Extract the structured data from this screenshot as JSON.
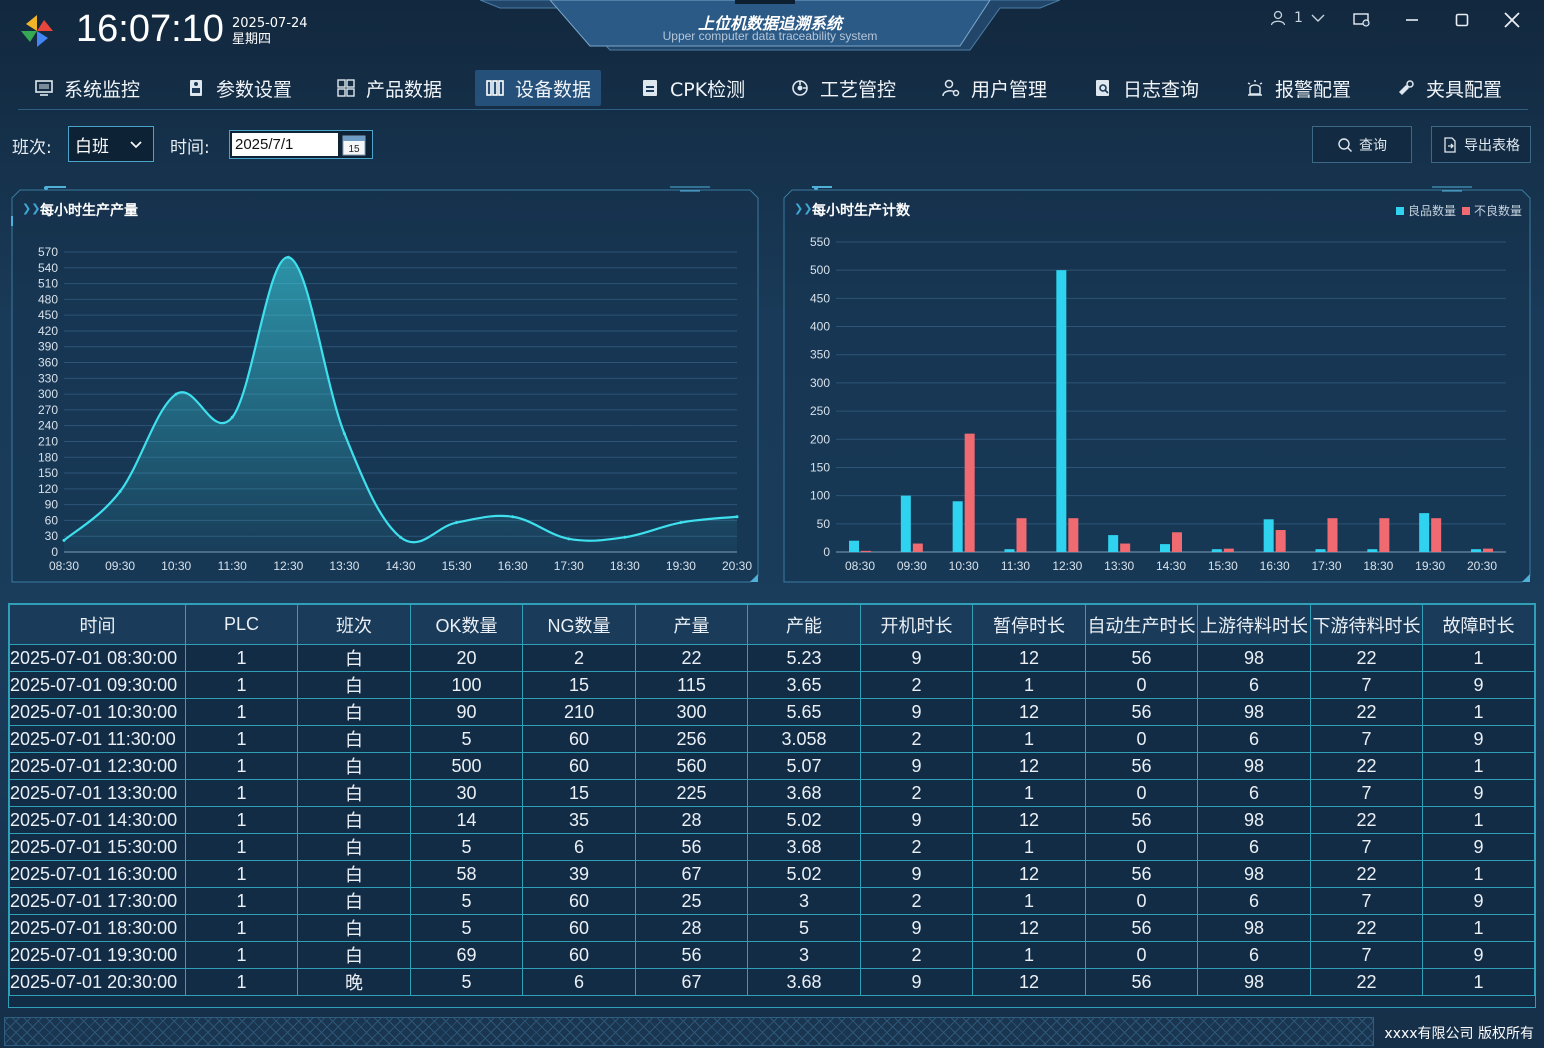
{
  "header": {
    "time": "16:07:10",
    "date": "2025-07-24",
    "weekday": "星期四",
    "title": "上位机数据追溯系统",
    "subtitle": "Upper computer data traceability system",
    "user_count": "1"
  },
  "nav": {
    "items": [
      {
        "label": "系统监控",
        "icon": "monitor-icon"
      },
      {
        "label": "参数设置",
        "icon": "plc-icon"
      },
      {
        "label": "产品数据",
        "icon": "grid-icon"
      },
      {
        "label": "设备数据",
        "icon": "barcode-icon"
      },
      {
        "label": "CPK检测",
        "icon": "cpk-icon"
      },
      {
        "label": "工艺管控",
        "icon": "process-icon"
      },
      {
        "label": "用户管理",
        "icon": "user-gear-icon"
      },
      {
        "label": "日志查询",
        "icon": "log-search-icon"
      },
      {
        "label": "报警配置",
        "icon": "alarm-icon"
      },
      {
        "label": "夹具配置",
        "icon": "fixture-icon"
      }
    ],
    "active": "设备数据"
  },
  "filter": {
    "shift_label": "班次:",
    "shift_value": "白班",
    "time_label": "时间:",
    "date_value": "2025/7/1",
    "calendar_day": "15",
    "query_label": "查询",
    "export_label": "导出表格"
  },
  "chart_data": [
    {
      "type": "area",
      "title": "每小时生产产量",
      "x": [
        "08:30",
        "09:30",
        "10:30",
        "11:30",
        "12:30",
        "13:30",
        "14:30",
        "15:30",
        "16:30",
        "17:30",
        "18:30",
        "19:30",
        "20:30"
      ],
      "values": [
        22,
        115,
        300,
        256,
        560,
        225,
        28,
        56,
        67,
        25,
        28,
        56,
        67
      ],
      "ylim": [
        0,
        570
      ],
      "yticks": [
        0,
        30,
        60,
        90,
        120,
        150,
        180,
        210,
        240,
        270,
        300,
        330,
        360,
        390,
        420,
        450,
        480,
        510,
        540,
        570
      ],
      "color": "#3ee0ee"
    },
    {
      "type": "bar",
      "title": "每小时生产计数",
      "categories": [
        "08:30",
        "09:30",
        "10:30",
        "11:30",
        "12:30",
        "13:30",
        "14:30",
        "15:30",
        "16:30",
        "17:30",
        "18:30",
        "19:30",
        "20:30"
      ],
      "series": [
        {
          "name": "良品数量",
          "color": "#2fd3ef",
          "values": [
            20,
            100,
            90,
            5,
            500,
            30,
            14,
            5,
            58,
            5,
            5,
            69,
            5
          ]
        },
        {
          "name": "不良数量",
          "color": "#f06a72",
          "values": [
            2,
            15,
            210,
            60,
            60,
            15,
            35,
            6,
            39,
            60,
            60,
            60,
            6
          ]
        }
      ],
      "ylim": [
        0,
        550
      ],
      "yticks": [
        0,
        50,
        100,
        150,
        200,
        250,
        300,
        350,
        400,
        450,
        500,
        550
      ]
    }
  ],
  "table": {
    "columns": [
      "时间",
      "PLC",
      "班次",
      "OK数量",
      "NG数量",
      "产量",
      "产能",
      "开机时长",
      "暂停时长",
      "自动生产时长",
      "上游待料时长",
      "下游待料时长",
      "故障时长"
    ],
    "rows": [
      [
        "2025-07-01 08:30:00",
        "1",
        "白",
        "20",
        "2",
        "22",
        "5.23",
        "9",
        "12",
        "56",
        "98",
        "22",
        "1"
      ],
      [
        "2025-07-01 09:30:00",
        "1",
        "白",
        "100",
        "15",
        "115",
        "3.65",
        "2",
        "1",
        "0",
        "6",
        "7",
        "9"
      ],
      [
        "2025-07-01 10:30:00",
        "1",
        "白",
        "90",
        "210",
        "300",
        "5.65",
        "9",
        "12",
        "56",
        "98",
        "22",
        "1"
      ],
      [
        "2025-07-01 11:30:00",
        "1",
        "白",
        "5",
        "60",
        "256",
        "3.058",
        "2",
        "1",
        "0",
        "6",
        "7",
        "9"
      ],
      [
        "2025-07-01 12:30:00",
        "1",
        "白",
        "500",
        "60",
        "560",
        "5.07",
        "9",
        "12",
        "56",
        "98",
        "22",
        "1"
      ],
      [
        "2025-07-01 13:30:00",
        "1",
        "白",
        "30",
        "15",
        "225",
        "3.68",
        "2",
        "1",
        "0",
        "6",
        "7",
        "9"
      ],
      [
        "2025-07-01 14:30:00",
        "1",
        "白",
        "14",
        "35",
        "28",
        "5.02",
        "9",
        "12",
        "56",
        "98",
        "22",
        "1"
      ],
      [
        "2025-07-01 15:30:00",
        "1",
        "白",
        "5",
        "6",
        "56",
        "3.68",
        "2",
        "1",
        "0",
        "6",
        "7",
        "9"
      ],
      [
        "2025-07-01 16:30:00",
        "1",
        "白",
        "58",
        "39",
        "67",
        "5.02",
        "9",
        "12",
        "56",
        "98",
        "22",
        "1"
      ],
      [
        "2025-07-01 17:30:00",
        "1",
        "白",
        "5",
        "60",
        "25",
        "3",
        "2",
        "1",
        "0",
        "6",
        "7",
        "9"
      ],
      [
        "2025-07-01 18:30:00",
        "1",
        "白",
        "5",
        "60",
        "28",
        "5",
        "9",
        "12",
        "56",
        "98",
        "22",
        "1"
      ],
      [
        "2025-07-01 19:30:00",
        "1",
        "白",
        "69",
        "60",
        "56",
        "3",
        "2",
        "1",
        "0",
        "6",
        "7",
        "9"
      ],
      [
        "2025-07-01 20:30:00",
        "1",
        "晚",
        "5",
        "6",
        "67",
        "3.68",
        "9",
        "12",
        "56",
        "98",
        "22",
        "1"
      ]
    ]
  },
  "footer": {
    "copyright": "xxxx有限公司 版权所有"
  }
}
